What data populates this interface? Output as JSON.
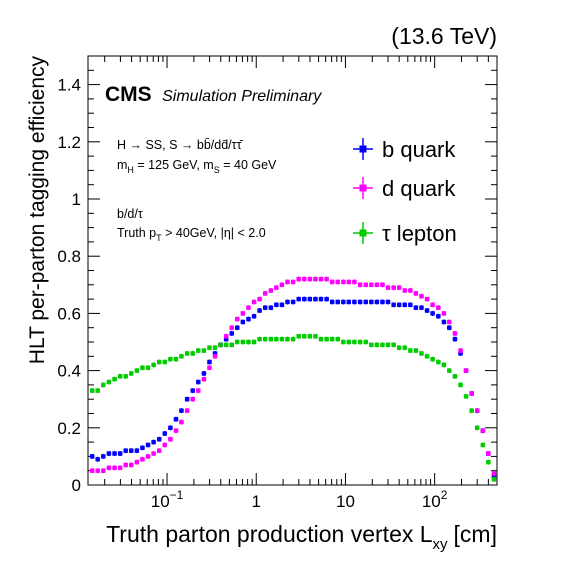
{
  "chart_data": {
    "type": "scatter",
    "energy_label": "(13.6 TeV)",
    "experiment": "CMS",
    "experiment_note": "Simulation Preliminary",
    "xlabel": "Truth parton production vertex L",
    "xlabel_sub": "xy",
    "xlabel_unit": "[cm]",
    "ylabel": "HLT per-parton tagging efficiency",
    "x_scale": "log",
    "xlim": [
      0.013,
      500
    ],
    "ylim": [
      0,
      1.5
    ],
    "x_ticks": [
      {
        "value": 0.1,
        "base": "10",
        "exp": "−1"
      },
      {
        "value": 1,
        "label": "1"
      },
      {
        "value": 10,
        "label": "10"
      },
      {
        "value": 100,
        "base": "10",
        "exp": "2"
      }
    ],
    "y_ticks": [
      {
        "value": 0,
        "label": "0"
      },
      {
        "value": 0.2,
        "label": "0.2"
      },
      {
        "value": 0.4,
        "label": "0.4"
      },
      {
        "value": 0.6,
        "label": "0.6"
      },
      {
        "value": 0.8,
        "label": "0.8"
      },
      {
        "value": 1.0,
        "label": "1"
      },
      {
        "value": 1.2,
        "label": "1.2"
      },
      {
        "value": 1.4,
        "label": "1.4"
      }
    ],
    "annotations": {
      "process": "H → SS, S → bb̄/dd̄/ττ̄",
      "mass_mh": "m",
      "mass_mh_sub": "H",
      "mass_mh_val": " = 125 GeV, m",
      "mass_ms_sub": "S",
      "mass_ms_val": " = 40 GeV",
      "flavours": "b/d/τ",
      "cut_a": "Truth p",
      "cut_sub": "T",
      "cut_b": " > 40GeV, |η| < 2.0"
    },
    "legend_placement": "top-right",
    "series": [
      {
        "name": "b quark",
        "color": "#0000ff",
        "x": [
          0.0145,
          0.0167,
          0.0193,
          0.0223,
          0.0258,
          0.0298,
          0.0344,
          0.0397,
          0.0459,
          0.053,
          0.0612,
          0.0707,
          0.0817,
          0.0943,
          0.109,
          0.126,
          0.145,
          0.168,
          0.194,
          0.224,
          0.259,
          0.299,
          0.345,
          0.398,
          0.46,
          0.531,
          0.613,
          0.708,
          0.818,
          0.945,
          1.09,
          1.26,
          1.46,
          1.68,
          1.94,
          2.24,
          2.59,
          2.99,
          3.46,
          3.99,
          4.61,
          5.32,
          6.15,
          7.1,
          8.2,
          9.47,
          10.9,
          12.6,
          14.6,
          16.9,
          19.5,
          22.5,
          26.0,
          30.0,
          34.7,
          40.0,
          46.2,
          53.4,
          61.6,
          71.2,
          82.2,
          94.9,
          110,
          127,
          146,
          169,
          195,
          225,
          260,
          300,
          347,
          400,
          462
        ],
        "y": [
          0.1,
          0.09,
          0.1,
          0.11,
          0.11,
          0.11,
          0.12,
          0.12,
          0.12,
          0.13,
          0.14,
          0.15,
          0.16,
          0.18,
          0.2,
          0.23,
          0.26,
          0.3,
          0.33,
          0.36,
          0.39,
          0.43,
          0.46,
          0.49,
          0.51,
          0.53,
          0.55,
          0.57,
          0.58,
          0.59,
          0.61,
          0.62,
          0.62,
          0.63,
          0.63,
          0.64,
          0.64,
          0.65,
          0.65,
          0.65,
          0.65,
          0.65,
          0.65,
          0.64,
          0.64,
          0.64,
          0.64,
          0.64,
          0.64,
          0.64,
          0.64,
          0.64,
          0.64,
          0.64,
          0.63,
          0.63,
          0.63,
          0.63,
          0.62,
          0.62,
          0.61,
          0.6,
          0.59,
          0.57,
          0.55,
          0.51,
          0.46,
          0.4,
          0.32,
          0.26,
          0.19,
          0.11,
          0.03
        ]
      },
      {
        "name": "d quark",
        "color": "#ff00ff",
        "x": [
          0.0145,
          0.0167,
          0.0193,
          0.0223,
          0.0258,
          0.0298,
          0.0344,
          0.0397,
          0.0459,
          0.053,
          0.0612,
          0.0707,
          0.0817,
          0.0943,
          0.109,
          0.126,
          0.145,
          0.168,
          0.194,
          0.224,
          0.259,
          0.299,
          0.345,
          0.398,
          0.46,
          0.531,
          0.613,
          0.708,
          0.818,
          0.945,
          1.09,
          1.26,
          1.46,
          1.68,
          1.94,
          2.24,
          2.59,
          2.99,
          3.46,
          3.99,
          4.61,
          5.32,
          6.15,
          7.1,
          8.2,
          9.47,
          10.9,
          12.6,
          14.6,
          16.9,
          19.5,
          22.5,
          26.0,
          30.0,
          34.7,
          40.0,
          46.2,
          53.4,
          61.6,
          71.2,
          82.2,
          94.9,
          110,
          127,
          146,
          169,
          195,
          225,
          260,
          300,
          347,
          400,
          462
        ],
        "y": [
          0.05,
          0.05,
          0.05,
          0.06,
          0.06,
          0.06,
          0.07,
          0.07,
          0.08,
          0.09,
          0.1,
          0.11,
          0.12,
          0.14,
          0.16,
          0.19,
          0.22,
          0.26,
          0.3,
          0.33,
          0.37,
          0.41,
          0.45,
          0.49,
          0.52,
          0.55,
          0.58,
          0.6,
          0.62,
          0.64,
          0.65,
          0.67,
          0.68,
          0.69,
          0.7,
          0.71,
          0.71,
          0.72,
          0.72,
          0.72,
          0.72,
          0.72,
          0.72,
          0.71,
          0.71,
          0.71,
          0.71,
          0.71,
          0.7,
          0.7,
          0.7,
          0.7,
          0.7,
          0.69,
          0.69,
          0.69,
          0.68,
          0.68,
          0.67,
          0.66,
          0.65,
          0.63,
          0.62,
          0.6,
          0.57,
          0.53,
          0.47,
          0.4,
          0.32,
          0.26,
          0.19,
          0.11,
          0.04
        ]
      },
      {
        "name": "τ lepton",
        "color": "#00cc00",
        "x": [
          0.0145,
          0.0167,
          0.0193,
          0.0223,
          0.0258,
          0.0298,
          0.0344,
          0.0397,
          0.0459,
          0.053,
          0.0612,
          0.0707,
          0.0817,
          0.0943,
          0.109,
          0.126,
          0.145,
          0.168,
          0.194,
          0.224,
          0.259,
          0.299,
          0.345,
          0.398,
          0.46,
          0.531,
          0.613,
          0.708,
          0.818,
          0.945,
          1.09,
          1.26,
          1.46,
          1.68,
          1.94,
          2.24,
          2.59,
          2.99,
          3.46,
          3.99,
          4.61,
          5.32,
          6.15,
          7.1,
          8.2,
          9.47,
          10.9,
          12.6,
          14.6,
          16.9,
          19.5,
          22.5,
          26.0,
          30.0,
          34.7,
          40.0,
          46.2,
          53.4,
          61.6,
          71.2,
          82.2,
          94.9,
          110,
          127,
          146,
          169,
          195,
          225,
          260,
          300,
          347,
          400,
          462
        ],
        "y": [
          0.33,
          0.33,
          0.35,
          0.36,
          0.37,
          0.38,
          0.38,
          0.39,
          0.4,
          0.41,
          0.41,
          0.42,
          0.43,
          0.43,
          0.44,
          0.44,
          0.45,
          0.46,
          0.46,
          0.47,
          0.47,
          0.48,
          0.48,
          0.49,
          0.49,
          0.49,
          0.5,
          0.5,
          0.5,
          0.5,
          0.51,
          0.51,
          0.51,
          0.51,
          0.51,
          0.51,
          0.51,
          0.52,
          0.52,
          0.52,
          0.52,
          0.51,
          0.51,
          0.51,
          0.51,
          0.5,
          0.5,
          0.5,
          0.5,
          0.5,
          0.49,
          0.49,
          0.49,
          0.49,
          0.49,
          0.48,
          0.48,
          0.47,
          0.47,
          0.46,
          0.45,
          0.44,
          0.43,
          0.42,
          0.4,
          0.38,
          0.35,
          0.31,
          0.26,
          0.2,
          0.14,
          0.08,
          0.02
        ]
      }
    ]
  }
}
